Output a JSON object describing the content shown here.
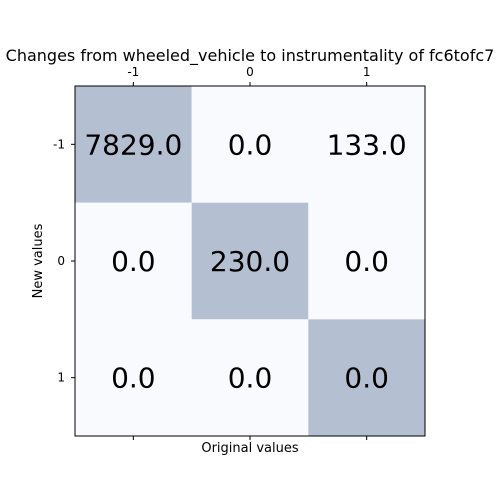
{
  "chart_data": {
    "type": "heatmap",
    "title": "Changes from wheeled_vehicle to instrumentality of fc6tofc7",
    "xlabel": "Original values",
    "ylabel": "New values",
    "x_categories": [
      "-1",
      "0",
      "1"
    ],
    "y_categories": [
      "-1",
      "0",
      "1"
    ],
    "x_ticks_position": "top",
    "bottom_ticks_labeled": false,
    "grid": false,
    "values": [
      [
        7829.0,
        0.0,
        133.0
      ],
      [
        0.0,
        230.0,
        0.0
      ],
      [
        0.0,
        0.0,
        0.0
      ]
    ],
    "cell_labels": [
      [
        "7829.0",
        "0.0",
        "133.0"
      ],
      [
        "0.0",
        "230.0",
        "0.0"
      ],
      [
        "0.0",
        "0.0",
        "0.0"
      ]
    ],
    "highlighted": [
      [
        true,
        false,
        false
      ],
      [
        false,
        true,
        false
      ],
      [
        false,
        false,
        true
      ]
    ],
    "colors": {
      "highlight": "#b4c0d2",
      "background": "#f8fafd"
    }
  }
}
